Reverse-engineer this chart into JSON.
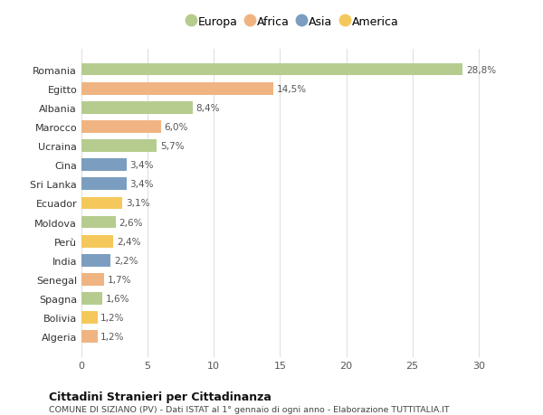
{
  "countries": [
    "Romania",
    "Egitto",
    "Albania",
    "Marocco",
    "Ucraina",
    "Cina",
    "Sri Lanka",
    "Ecuador",
    "Moldova",
    "Perù",
    "India",
    "Senegal",
    "Spagna",
    "Bolivia",
    "Algeria"
  ],
  "values": [
    28.8,
    14.5,
    8.4,
    6.0,
    5.7,
    3.4,
    3.4,
    3.1,
    2.6,
    2.4,
    2.2,
    1.7,
    1.6,
    1.2,
    1.2
  ],
  "labels": [
    "28,8%",
    "14,5%",
    "8,4%",
    "6,0%",
    "5,7%",
    "3,4%",
    "3,4%",
    "3,1%",
    "2,6%",
    "2,4%",
    "2,2%",
    "1,7%",
    "1,6%",
    "1,2%",
    "1,2%"
  ],
  "categories": [
    "Europa",
    "Africa",
    "Europa",
    "Africa",
    "Europa",
    "Asia",
    "Asia",
    "America",
    "Europa",
    "America",
    "Asia",
    "Africa",
    "Europa",
    "America",
    "Africa"
  ],
  "category_colors": {
    "Europa": "#b5cc8e",
    "Africa": "#f0b482",
    "Asia": "#7b9ec0",
    "America": "#f5c85c"
  },
  "legend_order": [
    "Europa",
    "Africa",
    "Asia",
    "America"
  ],
  "legend_colors": [
    "#b5cc8e",
    "#f0b482",
    "#7b9ec0",
    "#f5c85c"
  ],
  "title": "Cittadini Stranieri per Cittadinanza",
  "subtitle": "COMUNE DI SIZIANO (PV) - Dati ISTAT al 1° gennaio di ogni anno - Elaborazione TUTTITALIA.IT",
  "xlim": [
    0,
    32
  ],
  "xticks": [
    0,
    5,
    10,
    15,
    20,
    25,
    30
  ],
  "background_color": "#ffffff",
  "grid_color": "#e0e0e0"
}
